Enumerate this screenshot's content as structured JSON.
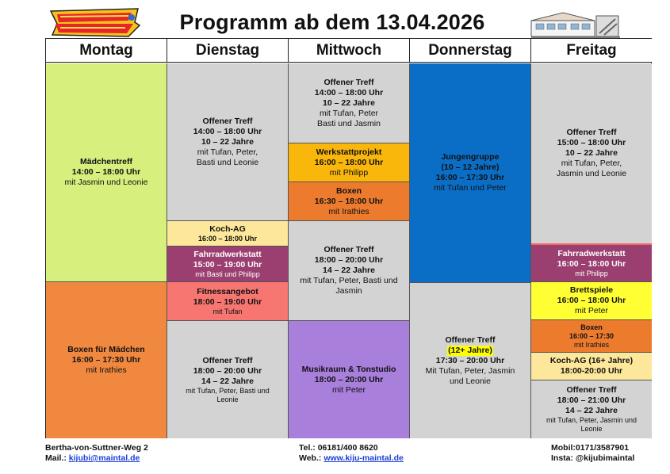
{
  "title": "Programm ab dem 13.04.2026",
  "logo_left_icon": "kijubi-graffiti-logo",
  "logo_right_icon": "youth-center-building-icon",
  "days": [
    "Montag",
    "Dienstag",
    "Mittwoch",
    "Donnerstag",
    "Freitag"
  ],
  "colors": {
    "lime": "#d6ef7d",
    "orange": "#f0883f",
    "grey": "#d3d3d3",
    "peach": "#fde79a",
    "plum": "#9b3f70",
    "salmon": "#f87672",
    "yellow_orange": "#f9b60b",
    "dark_orange": "#ec7b2e",
    "purple": "#a87fdb",
    "blue": "#0a6ec7",
    "yellow": "#ffff33"
  },
  "montag": {
    "maedchentreff": {
      "name": "Mädchentreff",
      "time": "14:00 – 18:00 Uhr",
      "staff": "mit Jasmin und Leonie"
    },
    "boxen": {
      "name": "Boxen für Mädchen",
      "time": "16:00 – 17:30 Uhr",
      "staff": "mit Irathies"
    }
  },
  "dienstag": {
    "treff1": {
      "name": "Offener Treff",
      "time": "14:00 – 18:00 Uhr",
      "age": "10 – 22 Jahre",
      "staff1": "mit Tufan, Peter,",
      "staff2": "Basti und Leonie"
    },
    "koch": {
      "name": "Koch-AG",
      "time": "16:00 – 18:00 Uhr"
    },
    "fahrrad": {
      "name": "Fahrradwerkstatt",
      "time": "15:00 – 19:00 Uhr",
      "staff": "mit Basti und Philipp"
    },
    "fitness": {
      "name": "Fitnessangebot",
      "time": "18:00 – 19:00 Uhr",
      "staff": "mit Tufan"
    },
    "treff2": {
      "name": "Offener Treff",
      "time": "18:00 – 20:00 Uhr",
      "age": "14 – 22 Jahre",
      "staff1": "mit Tufan, Peter, Basti und",
      "staff2": "Leonie"
    }
  },
  "mittwoch": {
    "treff1": {
      "name": "Offener Treff",
      "time": "14:00 – 18:00 Uhr",
      "age": "10 – 22 Jahre",
      "staff1": "mit Tufan, Peter",
      "staff2": "Basti und Jasmin"
    },
    "werkstatt": {
      "name": "Werkstattprojekt",
      "time": "16:00 – 18:00 Uhr",
      "staff": "mit Philipp"
    },
    "boxen": {
      "name": "Boxen",
      "time": "16:30 – 18:00 Uhr",
      "staff": "mit Irathies"
    },
    "treff2": {
      "name": "Offener Treff",
      "time": "18:00 – 20:00 Uhr",
      "age": "14 – 22 Jahre",
      "staff1": "mit Tufan, Peter, Basti und",
      "staff2": "Jasmin"
    },
    "musik": {
      "name": "Musikraum & Tonstudio",
      "time": "18:00 – 20:00 Uhr",
      "staff": "mit Peter"
    }
  },
  "donnerstag": {
    "jungen": {
      "name": "Jungengruppe",
      "age": "(10 – 12 Jahre)",
      "time": "16:00 – 17:30 Uhr",
      "staff": "mit Tufan und Peter"
    },
    "treff": {
      "name": "Offener Treff",
      "age": "(12+ Jahre)",
      "time": "17:30 – 20:00 Uhr",
      "staff1": "Mit Tufan, Peter, Jasmin",
      "staff2": "und Leonie"
    }
  },
  "freitag": {
    "treff1": {
      "name": "Offener Treff",
      "time": "15:00 – 18:00 Uhr",
      "age": "10 – 22 Jahre",
      "staff1": "mit Tufan, Peter,",
      "staff2": "Jasmin und Leonie"
    },
    "fahrrad": {
      "name": "Fahrradwerkstatt",
      "time": "16:00 – 18:00 Uhr",
      "staff": "mit Philipp"
    },
    "brett": {
      "name": "Brettspiele",
      "time": "16:00 – 18:00 Uhr",
      "staff": "mit Peter"
    },
    "boxen": {
      "name": "Boxen",
      "time": "16:00 – 17:30",
      "staff": "mit Irathies"
    },
    "koch": {
      "name": "Koch-AG (16+ Jahre)",
      "time": "18:00-20:00 Uhr"
    },
    "treff2": {
      "name": "Offener Treff",
      "time": "18:00 – 21:00 Uhr",
      "age": "14 – 22 Jahre",
      "staff1": "mit Tufan, Peter, Jasmin und",
      "staff2": "Leonie"
    }
  },
  "footer": {
    "address": "Bertha-von-Suttner-Weg 2",
    "mail_label": "Mail.:",
    "mail": "kijubi@maintal.de",
    "tel": "Tel.: 06181/400 8620",
    "web_label": "Web.:",
    "web": "www.kiju-maintal.de",
    "mobil": "Mobil:0171/3587901",
    "insta": "Insta:  @kijubimaintal"
  }
}
